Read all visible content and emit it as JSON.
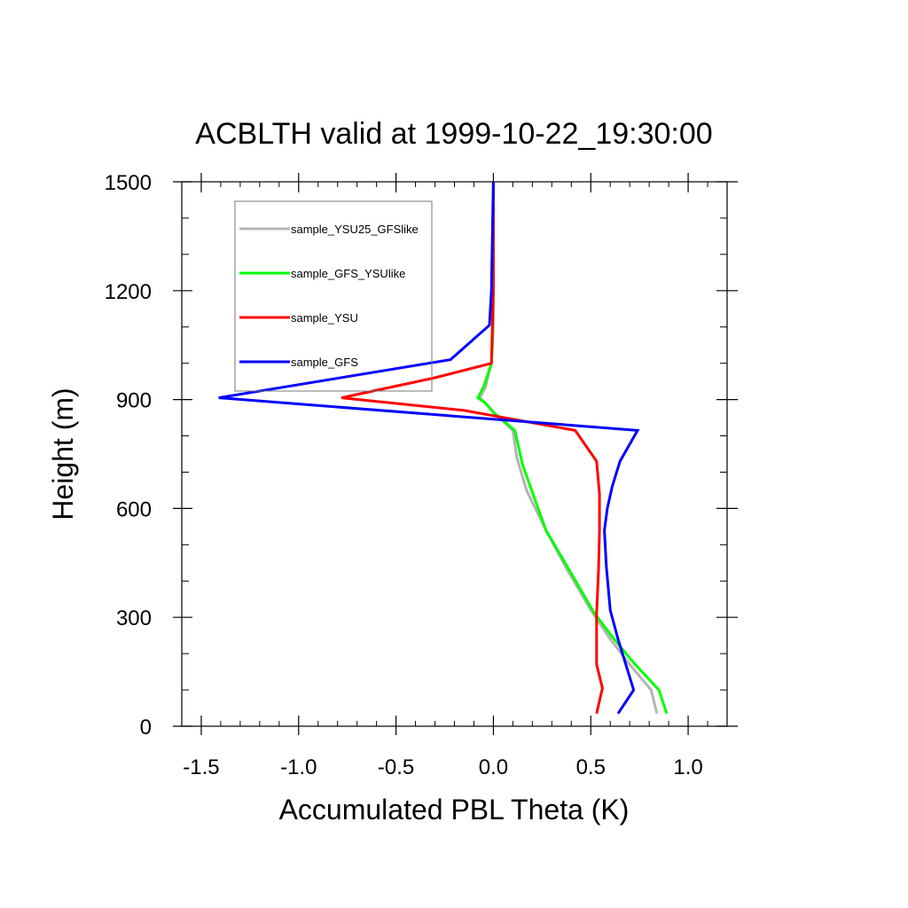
{
  "chart_data": {
    "type": "line",
    "title": "ACBLTH valid at 1999-10-22_19:30:00",
    "xlabel": "Accumulated PBL Theta (K)",
    "ylabel": "Height (m)",
    "xlim": [
      -1.6,
      1.2
    ],
    "ylim": [
      0,
      1500
    ],
    "x_ticks": [
      -1.5,
      -1.0,
      -0.5,
      0.0,
      0.5,
      1.0
    ],
    "x_tick_labels": [
      "-1.5",
      "-1.0",
      "-0.5",
      "0.0",
      "0.5",
      "1.0"
    ],
    "y_ticks": [
      0,
      300,
      600,
      900,
      1200,
      1500
    ],
    "y_tick_labels": [
      "0",
      "300",
      "600",
      "900",
      "1200",
      "1500"
    ],
    "grid": false,
    "legend_position": "top-left",
    "series": [
      {
        "name": "sample_YSU25_GFSlike",
        "color": "#b4b4b4",
        "points": [
          [
            0.84,
            35
          ],
          [
            0.81,
            100
          ],
          [
            0.7,
            170
          ],
          [
            0.6,
            240
          ],
          [
            0.5,
            320
          ],
          [
            0.38,
            430
          ],
          [
            0.27,
            540
          ],
          [
            0.17,
            650
          ],
          [
            0.12,
            740
          ],
          [
            0.1,
            815
          ],
          [
            0.0,
            865
          ],
          [
            -0.04,
            890
          ],
          [
            -0.07,
            905
          ],
          [
            -0.04,
            935
          ],
          [
            -0.01,
            1000
          ],
          [
            -0.005,
            1050
          ],
          [
            0.0,
            1100
          ],
          [
            0.0,
            1200
          ],
          [
            0.0,
            1500
          ]
        ]
      },
      {
        "name": "sample_GFS_YSUlike",
        "color": "#00ff00",
        "points": [
          [
            0.89,
            35
          ],
          [
            0.85,
            100
          ],
          [
            0.72,
            175
          ],
          [
            0.62,
            240
          ],
          [
            0.52,
            310
          ],
          [
            0.39,
            430
          ],
          [
            0.27,
            540
          ],
          [
            0.15,
            720
          ],
          [
            0.11,
            815
          ],
          [
            0.0,
            865
          ],
          [
            -0.04,
            890
          ],
          [
            -0.08,
            905
          ],
          [
            -0.05,
            935
          ],
          [
            -0.01,
            1000
          ],
          [
            -0.005,
            1050
          ],
          [
            0.0,
            1200
          ],
          [
            0.0,
            1500
          ]
        ]
      },
      {
        "name": "sample_YSU",
        "color": "#ff0000",
        "points": [
          [
            0.53,
            35
          ],
          [
            0.56,
            105
          ],
          [
            0.53,
            170
          ],
          [
            0.53,
            240
          ],
          [
            0.53,
            310
          ],
          [
            0.54,
            430
          ],
          [
            0.545,
            540
          ],
          [
            0.545,
            640
          ],
          [
            0.53,
            730
          ],
          [
            0.42,
            815
          ],
          [
            -0.15,
            870
          ],
          [
            -0.78,
            905
          ],
          [
            -0.3,
            960
          ],
          [
            -0.01,
            1000
          ],
          [
            0.0,
            1200
          ],
          [
            0.0,
            1500
          ]
        ]
      },
      {
        "name": "sample_GFS",
        "color": "#0000ff",
        "points": [
          [
            0.64,
            35
          ],
          [
            0.72,
            100
          ],
          [
            0.68,
            170
          ],
          [
            0.64,
            240
          ],
          [
            0.6,
            320
          ],
          [
            0.58,
            440
          ],
          [
            0.57,
            540
          ],
          [
            0.585,
            600
          ],
          [
            0.61,
            660
          ],
          [
            0.65,
            730
          ],
          [
            0.74,
            815
          ],
          [
            -1.41,
            905
          ],
          [
            -0.22,
            1010
          ],
          [
            -0.02,
            1105
          ],
          [
            -0.01,
            1200
          ],
          [
            0.0,
            1500
          ]
        ]
      }
    ]
  }
}
